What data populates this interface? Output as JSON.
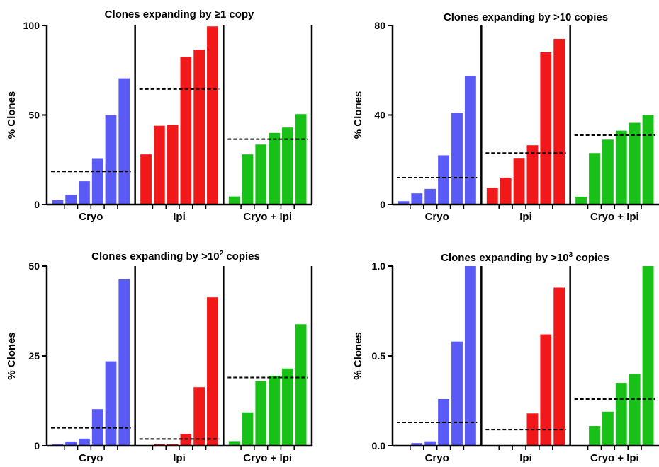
{
  "colors": {
    "cryo": "#5a5af5",
    "ipi": "#f01818",
    "cryo_ipi": "#18c018",
    "mean_line": "#000000",
    "axis": "#000000"
  },
  "chart_data": [
    {
      "type": "bar",
      "title": "Clones expanding by ≥1 copy",
      "title_parts": {
        "pre": "Clones expanding by ≥1 copy",
        "sup": "",
        "post": ""
      },
      "ylabel": "% Clones",
      "ylim": [
        0,
        100
      ],
      "yticks": [
        "0",
        "50",
        "100"
      ],
      "ytick_values": [
        0,
        50,
        100
      ],
      "groups": [
        {
          "label": "Cryo",
          "color_key": "cryo",
          "values": [
            2.5,
            5.5,
            13,
            25.5,
            50,
            70.5
          ],
          "mean": 18.5
        },
        {
          "label": "Ipi",
          "color_key": "ipi",
          "values": [
            28,
            44,
            44.5,
            82.5,
            86.5,
            99.5
          ],
          "mean": 64.5
        },
        {
          "label": "Cryo + Ipi",
          "color_key": "cryo_ipi",
          "values": [
            4.5,
            28,
            33.5,
            40,
            43,
            50.5
          ],
          "mean": 36.5
        }
      ]
    },
    {
      "type": "bar",
      "title": "Clones expanding by >10 copies",
      "title_parts": {
        "pre": "Clones expanding by >10 copies",
        "sup": "",
        "post": ""
      },
      "ylabel": "% Clones",
      "ylim": [
        0,
        80
      ],
      "yticks": [
        "0",
        "40",
        "80"
      ],
      "ytick_values": [
        0,
        40,
        80
      ],
      "groups": [
        {
          "label": "Cryo",
          "color_key": "cryo",
          "values": [
            1.5,
            5,
            7,
            22,
            41,
            57.5
          ],
          "mean": 12
        },
        {
          "label": "Ipi",
          "color_key": "ipi",
          "values": [
            7.5,
            12,
            20.5,
            26.5,
            68,
            74
          ],
          "mean": 23
        },
        {
          "label": "Cryo + Ipi",
          "color_key": "cryo_ipi",
          "values": [
            3.5,
            23,
            29,
            33,
            36.5,
            40
          ],
          "mean": 31
        }
      ]
    },
    {
      "type": "bar",
      "title": "Clones expanding by >10² copies",
      "title_parts": {
        "pre": "Clones expanding by >10",
        "sup": "2",
        "post": " copies"
      },
      "ylabel": "% Clones",
      "ylim": [
        0,
        50
      ],
      "yticks": [
        "0",
        "25",
        "50"
      ],
      "ytick_values": [
        0,
        25,
        50
      ],
      "groups": [
        {
          "label": "Cryo",
          "color_key": "cryo",
          "values": [
            0.5,
            1.2,
            2,
            10.2,
            23.5,
            46.3
          ],
          "mean": 5
        },
        {
          "label": "Ipi",
          "color_key": "ipi",
          "values": [
            0,
            0.4,
            0.4,
            3.3,
            16.3,
            41.3
          ],
          "mean": 1.9
        },
        {
          "label": "Cryo + Ipi",
          "color_key": "cryo_ipi",
          "values": [
            1.3,
            9.3,
            18,
            19.5,
            21.5,
            33.8
          ],
          "mean": 19
        }
      ]
    },
    {
      "type": "bar",
      "title": "Clones expanding by >10³ copies",
      "title_parts": {
        "pre": "Clones expanding by >10",
        "sup": "3",
        "post": " copies"
      },
      "ylabel": "% Clones",
      "ylim": [
        0,
        1.0
      ],
      "yticks": [
        "0.0",
        "0.5",
        "1.0"
      ],
      "ytick_values": [
        0,
        0.5,
        1.0
      ],
      "groups": [
        {
          "label": "Cryo",
          "color_key": "cryo",
          "values": [
            0,
            0.015,
            0.025,
            0.26,
            0.58,
            1.0
          ],
          "mean": 0.13
        },
        {
          "label": "Ipi",
          "color_key": "ipi",
          "values": [
            0,
            0,
            0,
            0.18,
            0.62,
            0.88
          ],
          "mean": 0.09
        },
        {
          "label": "Cryo + Ipi",
          "color_key": "cryo_ipi",
          "values": [
            0,
            0.11,
            0.19,
            0.35,
            0.4,
            1.0
          ],
          "mean": 0.26
        }
      ]
    }
  ]
}
